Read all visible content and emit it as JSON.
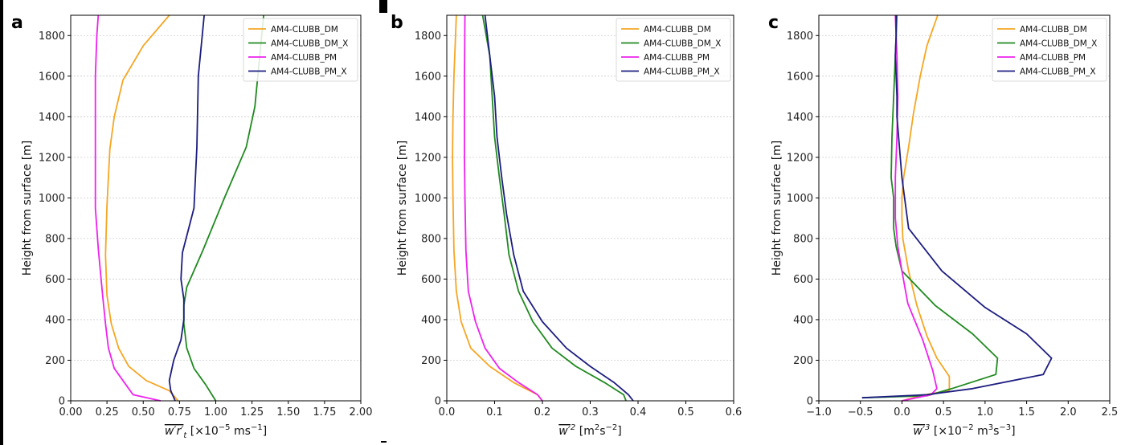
{
  "colors": {
    "AM4-CLUBB_DM": "#f5a623",
    "AM4-CLUBB_DM_X": "#1f8a1f",
    "AM4-CLUBB_PM": "#ee22ee",
    "AM4-CLUBB_PM_X": "#1c1c80"
  },
  "chart_data": [
    {
      "type": "line",
      "panel_letter": "a",
      "ylabel": "Height from surface [m]",
      "xlabel_main": "w′r′",
      "xlabel_sub": "t",
      "xlabel_units": " [×10",
      "xlabel_exp": "−5",
      "xlabel_units_tail": " ms",
      "xlabel_exp2": "−1",
      "xlabel_close": "]",
      "xlim": [
        0,
        2.0
      ],
      "ylim": [
        0,
        1900
      ],
      "xticks": [
        "0.00",
        "0.25",
        "0.50",
        "0.75",
        "1.00",
        "1.25",
        "1.50",
        "1.75",
        "2.00"
      ],
      "xtick_values": [
        0,
        0.25,
        0.5,
        0.75,
        1.0,
        1.25,
        1.5,
        1.75,
        2.0
      ],
      "yticks": [
        "0",
        "200",
        "400",
        "600",
        "800",
        "1000",
        "1200",
        "1400",
        "1600",
        "1800"
      ],
      "ytick_values": [
        0,
        200,
        400,
        600,
        800,
        1000,
        1200,
        1400,
        1600,
        1800
      ],
      "grid": "horizontal",
      "legend_position": "top-right",
      "series": [
        {
          "name": "AM4-CLUBB_DM",
          "x": [
            0.74,
            0.68,
            0.52,
            0.4,
            0.33,
            0.28,
            0.25,
            0.24,
            0.25,
            0.27,
            0.3,
            0.36,
            0.5,
            0.68
          ],
          "y": [
            0,
            50,
            100,
            170,
            260,
            380,
            520,
            720,
            960,
            1240,
            1400,
            1580,
            1750,
            1900
          ]
        },
        {
          "name": "AM4-CLUBB_DM_X",
          "x": [
            1.0,
            0.93,
            0.85,
            0.8,
            0.78,
            0.78,
            0.8,
            0.91,
            1.06,
            1.21,
            1.27,
            1.33
          ],
          "y": [
            0,
            80,
            160,
            260,
            380,
            470,
            560,
            740,
            1000,
            1250,
            1450,
            1900
          ]
        },
        {
          "name": "AM4-CLUBB_PM",
          "x": [
            0.62,
            0.43,
            0.37,
            0.3,
            0.26,
            0.24,
            0.22,
            0.19,
            0.17,
            0.17,
            0.17,
            0.18,
            0.19
          ],
          "y": [
            0,
            30,
            90,
            160,
            260,
            380,
            520,
            750,
            950,
            1200,
            1600,
            1800,
            1900
          ]
        },
        {
          "name": "AM4-CLUBB_PM_X",
          "x": [
            0.72,
            0.69,
            0.68,
            0.71,
            0.76,
            0.78,
            0.78,
            0.76,
            0.77,
            0.85,
            0.87,
            0.88,
            0.92
          ],
          "y": [
            0,
            50,
            100,
            200,
            300,
            400,
            500,
            600,
            730,
            950,
            1250,
            1600,
            1900
          ]
        }
      ]
    },
    {
      "type": "line",
      "panel_letter": "b",
      "ylabel": "Height from surface [m]",
      "xlabel_main": "w′",
      "xlabel_sup": "2",
      "xlabel_units": " [m",
      "xlabel_exp": "2",
      "xlabel_units_tail": "s",
      "xlabel_exp2": "−2",
      "xlabel_close": "]",
      "xlim": [
        0,
        0.6
      ],
      "ylim": [
        0,
        1900
      ],
      "xticks": [
        "0.0",
        "0.1",
        "0.2",
        "0.3",
        "0.4",
        "0.5",
        "0.6"
      ],
      "xtick_values": [
        0,
        0.1,
        0.2,
        0.3,
        0.4,
        0.5,
        0.6
      ],
      "yticks": [
        "0",
        "200",
        "400",
        "600",
        "800",
        "1000",
        "1200",
        "1400",
        "1600",
        "1800"
      ],
      "ytick_values": [
        0,
        200,
        400,
        600,
        800,
        1000,
        1200,
        1400,
        1600,
        1800
      ],
      "grid": "horizontal",
      "legend_position": "top-right",
      "series": [
        {
          "name": "AM4-CLUBB_DM",
          "x": [
            0.2,
            0.19,
            0.14,
            0.09,
            0.05,
            0.03,
            0.02,
            0.015,
            0.013,
            0.012,
            0.013,
            0.015,
            0.02
          ],
          "y": [
            0,
            30,
            90,
            170,
            260,
            390,
            540,
            740,
            1000,
            1200,
            1400,
            1600,
            1900
          ]
        },
        {
          "name": "AM4-CLUBB_PM",
          "x": [
            0.2,
            0.19,
            0.15,
            0.11,
            0.08,
            0.06,
            0.045,
            0.04,
            0.038,
            0.037,
            0.037,
            0.037,
            0.038
          ],
          "y": [
            0,
            30,
            90,
            160,
            260,
            390,
            540,
            740,
            1000,
            1200,
            1400,
            1600,
            1900
          ]
        },
        {
          "name": "AM4-CLUBB_DM_X",
          "x": [
            0.375,
            0.37,
            0.33,
            0.27,
            0.22,
            0.18,
            0.15,
            0.13,
            0.12,
            0.11,
            0.1,
            0.095,
            0.09,
            0.075
          ],
          "y": [
            0,
            30,
            90,
            170,
            260,
            390,
            540,
            720,
            920,
            1100,
            1300,
            1500,
            1700,
            1900
          ]
        },
        {
          "name": "AM4-CLUBB_PM_X",
          "x": [
            0.39,
            0.38,
            0.35,
            0.3,
            0.25,
            0.2,
            0.16,
            0.14,
            0.125,
            0.115,
            0.105,
            0.1,
            0.09,
            0.08
          ],
          "y": [
            0,
            30,
            90,
            170,
            260,
            390,
            540,
            720,
            920,
            1100,
            1300,
            1500,
            1700,
            1900
          ]
        }
      ]
    },
    {
      "type": "line",
      "panel_letter": "c",
      "ylabel": "Height from surface [m]",
      "xlabel_main": "w′",
      "xlabel_sup": "3",
      "xlabel_units": " [×10",
      "xlabel_exp": "−2",
      "xlabel_units_tail": " m",
      "xlabel_exp2": "3",
      "xlabel_units_tail2": "s",
      "xlabel_exp3": "−3",
      "xlabel_close": "]",
      "xlim": [
        -1.0,
        2.5
      ],
      "ylim": [
        0,
        1900
      ],
      "xticks": [
        "−1.0",
        "−0.5",
        "0.0",
        "0.5",
        "1.0",
        "1.5",
        "2.0",
        "2.5"
      ],
      "xtick_values": [
        -1.0,
        -0.5,
        0,
        0.5,
        1.0,
        1.5,
        2.0,
        2.5
      ],
      "yticks": [
        "0",
        "200",
        "400",
        "600",
        "800",
        "1000",
        "1200",
        "1400",
        "1600",
        "1800"
      ],
      "ytick_values": [
        0,
        200,
        400,
        600,
        800,
        1000,
        1200,
        1400,
        1600,
        1800
      ],
      "grid": "horizontal",
      "legend_position": "top-right",
      "series": [
        {
          "name": "AM4-CLUBB_DM",
          "x": [
            0.0,
            0.28,
            0.57,
            0.57,
            0.42,
            0.3,
            0.18,
            0.08,
            0.01,
            0.0,
            0.0,
            0.02,
            0.08,
            0.14,
            0.22,
            0.3,
            0.43
          ],
          "y": [
            0,
            30,
            50,
            120,
            210,
            320,
            470,
            640,
            800,
            900,
            1000,
            1100,
            1250,
            1420,
            1600,
            1750,
            1900
          ]
        },
        {
          "name": "AM4-CLUBB_DM_X",
          "x": [
            -0.48,
            0.3,
            0.6,
            1.13,
            1.15,
            0.85,
            0.4,
            0.0,
            -0.07,
            -0.1,
            -0.1,
            -0.13,
            -0.12,
            -0.1,
            -0.08,
            -0.06
          ],
          "y": [
            15,
            25,
            60,
            130,
            210,
            330,
            470,
            640,
            760,
            850,
            1000,
            1100,
            1300,
            1500,
            1700,
            1900
          ]
        },
        {
          "name": "AM4-CLUBB_PM",
          "x": [
            0.0,
            0.35,
            0.42,
            0.37,
            0.25,
            0.15,
            0.07,
            0.0,
            -0.05,
            -0.08,
            -0.08,
            -0.06,
            -0.05,
            -0.06,
            -0.07,
            -0.08
          ],
          "y": [
            0,
            30,
            60,
            150,
            300,
            400,
            480,
            640,
            760,
            900,
            1100,
            1300,
            1500,
            1700,
            1800,
            1900
          ]
        },
        {
          "name": "AM4-CLUBB_PM_X",
          "x": [
            -0.48,
            0.3,
            0.85,
            1.7,
            1.8,
            1.5,
            1.0,
            0.48,
            0.08,
            0.0,
            -0.06,
            -0.06,
            -0.07,
            -0.08,
            -0.07,
            -0.07
          ],
          "y": [
            15,
            30,
            60,
            130,
            210,
            330,
            460,
            640,
            850,
            1100,
            1400,
            1500,
            1600,
            1700,
            1800,
            1900
          ]
        }
      ]
    }
  ]
}
